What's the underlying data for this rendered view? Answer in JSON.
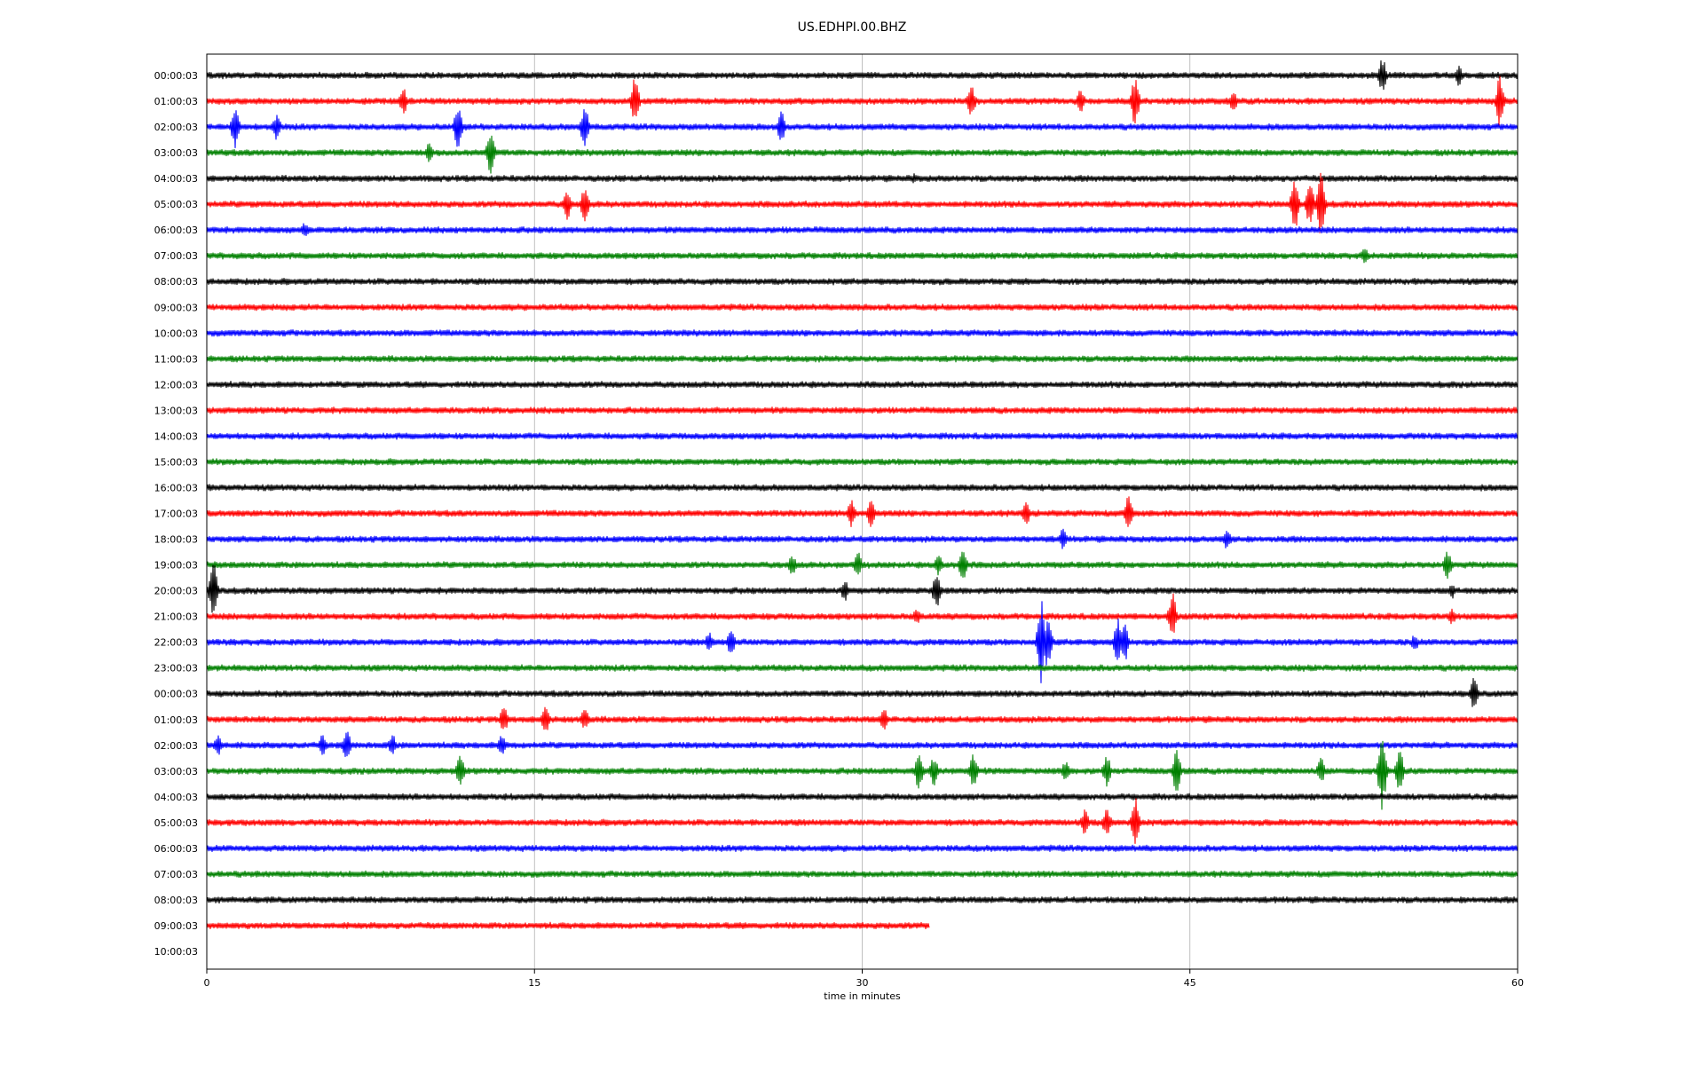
{
  "chart_data": {
    "type": "line",
    "title": "US.EDHPI.00.BHZ",
    "xlabel": "time in minutes",
    "ylabel": "",
    "xlim": [
      0,
      60
    ],
    "x_ticks": [
      "0",
      "15",
      "30",
      "45",
      "60"
    ],
    "x_tick_values": [
      0,
      15,
      30,
      45,
      60
    ],
    "grid": "vertical lines at x ticks",
    "color_cycle": [
      "#000000",
      "#ff0000",
      "#0000ff",
      "#008000"
    ],
    "rows": [
      {
        "label": "00:00:03",
        "end_minute": 60,
        "events": [
          {
            "t": 53.8,
            "a": 0.7
          },
          {
            "t": 57.3,
            "a": 0.4
          }
        ]
      },
      {
        "label": "01:00:03",
        "end_minute": 60,
        "events": [
          {
            "t": 9.0,
            "a": 0.5
          },
          {
            "t": 19.6,
            "a": 0.9
          },
          {
            "t": 35.0,
            "a": 0.6
          },
          {
            "t": 40.0,
            "a": 0.5
          },
          {
            "t": 42.5,
            "a": 1.0
          },
          {
            "t": 47.0,
            "a": 0.4
          },
          {
            "t": 59.2,
            "a": 1.0
          }
        ]
      },
      {
        "label": "02:00:03",
        "end_minute": 60,
        "events": [
          {
            "t": 1.3,
            "a": 0.9
          },
          {
            "t": 3.2,
            "a": 0.5
          },
          {
            "t": 11.5,
            "a": 0.8
          },
          {
            "t": 17.3,
            "a": 0.8
          },
          {
            "t": 26.3,
            "a": 0.6
          }
        ]
      },
      {
        "label": "03:00:03",
        "end_minute": 60,
        "events": [
          {
            "t": 10.2,
            "a": 0.4
          },
          {
            "t": 13.0,
            "a": 0.9
          }
        ]
      },
      {
        "label": "04:00:03",
        "end_minute": 60,
        "events": [
          {
            "t": 32.4,
            "a": 0.2
          }
        ]
      },
      {
        "label": "05:00:03",
        "end_minute": 60,
        "events": [
          {
            "t": 16.5,
            "a": 0.6
          },
          {
            "t": 17.3,
            "a": 0.7
          },
          {
            "t": 49.8,
            "a": 1.0
          },
          {
            "t": 50.5,
            "a": 0.9
          },
          {
            "t": 51.0,
            "a": 1.3
          }
        ]
      },
      {
        "label": "06:00:03",
        "end_minute": 60,
        "events": [
          {
            "t": 4.5,
            "a": 0.3
          }
        ]
      },
      {
        "label": "07:00:03",
        "end_minute": 60,
        "events": [
          {
            "t": 53.0,
            "a": 0.3
          }
        ]
      },
      {
        "label": "08:00:03",
        "end_minute": 60,
        "events": []
      },
      {
        "label": "09:00:03",
        "end_minute": 60,
        "events": []
      },
      {
        "label": "10:00:03",
        "end_minute": 60,
        "events": []
      },
      {
        "label": "11:00:03",
        "end_minute": 60,
        "events": []
      },
      {
        "label": "12:00:03",
        "end_minute": 60,
        "events": []
      },
      {
        "label": "13:00:03",
        "end_minute": 60,
        "events": []
      },
      {
        "label": "14:00:03",
        "end_minute": 60,
        "events": []
      },
      {
        "label": "15:00:03",
        "end_minute": 60,
        "events": []
      },
      {
        "label": "16:00:03",
        "end_minute": 60,
        "events": []
      },
      {
        "label": "17:00:03",
        "end_minute": 60,
        "events": [
          {
            "t": 29.5,
            "a": 0.5
          },
          {
            "t": 30.4,
            "a": 0.5
          },
          {
            "t": 37.5,
            "a": 0.5
          },
          {
            "t": 42.2,
            "a": 0.7
          }
        ]
      },
      {
        "label": "18:00:03",
        "end_minute": 60,
        "events": [
          {
            "t": 39.2,
            "a": 0.4
          },
          {
            "t": 46.7,
            "a": 0.4
          }
        ]
      },
      {
        "label": "19:00:03",
        "end_minute": 60,
        "events": [
          {
            "t": 26.8,
            "a": 0.4
          },
          {
            "t": 29.8,
            "a": 0.5
          },
          {
            "t": 33.5,
            "a": 0.4
          },
          {
            "t": 34.6,
            "a": 0.7
          },
          {
            "t": 56.8,
            "a": 0.6
          }
        ]
      },
      {
        "label": "20:00:03",
        "end_minute": 60,
        "events": [
          {
            "t": 0.3,
            "a": 1.2
          },
          {
            "t": 29.2,
            "a": 0.4
          },
          {
            "t": 33.4,
            "a": 0.7
          },
          {
            "t": 57.0,
            "a": 0.3
          }
        ]
      },
      {
        "label": "21:00:03",
        "end_minute": 60,
        "events": [
          {
            "t": 32.5,
            "a": 0.3
          },
          {
            "t": 44.2,
            "a": 0.9
          },
          {
            "t": 57.0,
            "a": 0.3
          }
        ]
      },
      {
        "label": "22:00:03",
        "end_minute": 60,
        "events": [
          {
            "t": 23.0,
            "a": 0.4
          },
          {
            "t": 24.0,
            "a": 0.5
          },
          {
            "t": 38.2,
            "a": 1.6
          },
          {
            "t": 38.5,
            "a": 1.0
          },
          {
            "t": 41.7,
            "a": 0.9
          },
          {
            "t": 42.0,
            "a": 0.8
          },
          {
            "t": 55.3,
            "a": 0.3
          }
        ]
      },
      {
        "label": "23:00:03",
        "end_minute": 60,
        "events": []
      },
      {
        "label": "00:00:03",
        "end_minute": 60,
        "events": [
          {
            "t": 58.0,
            "a": 0.6
          }
        ]
      },
      {
        "label": "01:00:03",
        "end_minute": 60,
        "events": [
          {
            "t": 13.6,
            "a": 0.5
          },
          {
            "t": 15.5,
            "a": 0.6
          },
          {
            "t": 17.3,
            "a": 0.4
          },
          {
            "t": 31.0,
            "a": 0.4
          }
        ]
      },
      {
        "label": "02:00:03",
        "end_minute": 60,
        "events": [
          {
            "t": 0.5,
            "a": 0.4
          },
          {
            "t": 5.3,
            "a": 0.4
          },
          {
            "t": 6.4,
            "a": 0.6
          },
          {
            "t": 8.5,
            "a": 0.4
          },
          {
            "t": 13.5,
            "a": 0.4
          }
        ]
      },
      {
        "label": "03:00:03",
        "end_minute": 60,
        "events": [
          {
            "t": 11.6,
            "a": 0.6
          },
          {
            "t": 32.6,
            "a": 0.8
          },
          {
            "t": 33.3,
            "a": 0.6
          },
          {
            "t": 35.1,
            "a": 0.7
          },
          {
            "t": 39.3,
            "a": 0.4
          },
          {
            "t": 41.2,
            "a": 0.6
          },
          {
            "t": 44.4,
            "a": 0.9
          },
          {
            "t": 51.0,
            "a": 0.5
          },
          {
            "t": 53.8,
            "a": 1.5
          },
          {
            "t": 54.6,
            "a": 0.8
          }
        ]
      },
      {
        "label": "04:00:03",
        "end_minute": 60,
        "events": []
      },
      {
        "label": "05:00:03",
        "end_minute": 60,
        "events": [
          {
            "t": 40.2,
            "a": 0.5
          },
          {
            "t": 41.2,
            "a": 0.6
          },
          {
            "t": 42.5,
            "a": 1.0
          }
        ]
      },
      {
        "label": "06:00:03",
        "end_minute": 60,
        "events": []
      },
      {
        "label": "07:00:03",
        "end_minute": 60,
        "events": []
      },
      {
        "label": "08:00:03",
        "end_minute": 60,
        "events": []
      },
      {
        "label": "09:00:03",
        "end_minute": 33.1,
        "events": []
      },
      {
        "label": "10:00:03",
        "end_minute": 0,
        "events": []
      }
    ]
  }
}
